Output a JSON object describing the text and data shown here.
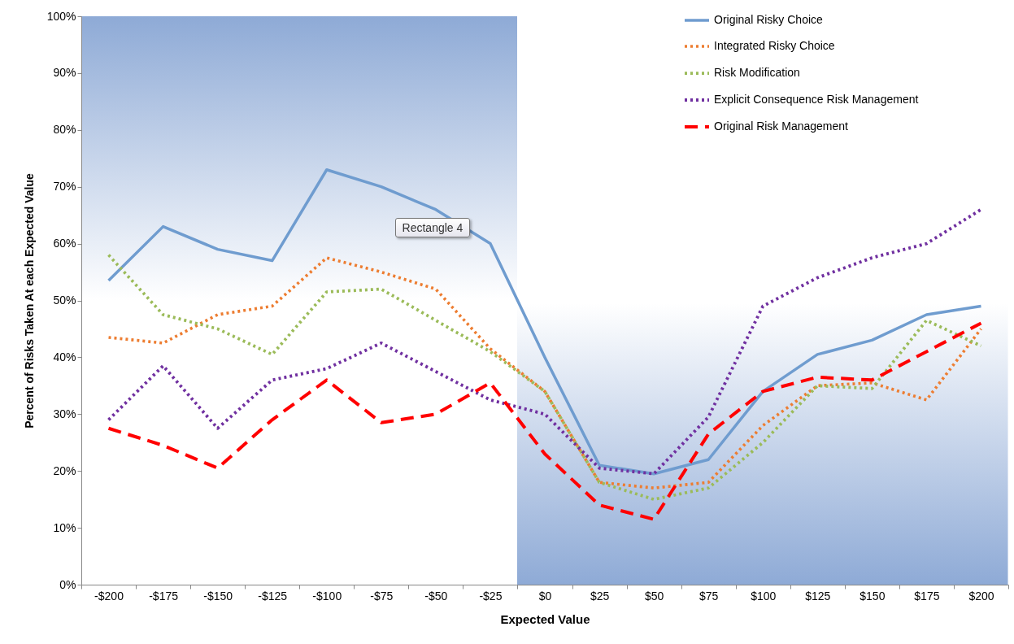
{
  "chart_data": {
    "type": "line",
    "xlabel": "Expected Value",
    "ylabel": "Percent of Risks Taken At each Expected Value",
    "categories": [
      "-$200",
      "-$175",
      "-$150",
      "-$125",
      "-$100",
      "-$75",
      "-$50",
      "-$25",
      "$0",
      "$25",
      "$50",
      "$75",
      "$100",
      "$125",
      "$150",
      "$175",
      "$200"
    ],
    "ylim": [
      0,
      100
    ],
    "yticks": [
      {
        "value": 0,
        "label": "0%"
      },
      {
        "value": 10,
        "label": "10%"
      },
      {
        "value": 20,
        "label": "20%"
      },
      {
        "value": 30,
        "label": "30%"
      },
      {
        "value": 40,
        "label": "40%"
      },
      {
        "value": 50,
        "label": "50%"
      },
      {
        "value": 60,
        "label": "60%"
      },
      {
        "value": 70,
        "label": "70%"
      },
      {
        "value": 80,
        "label": "80%"
      },
      {
        "value": 90,
        "label": "90%"
      },
      {
        "value": 100,
        "label": "100%"
      }
    ],
    "legend": "top right",
    "annotations": [
      "Rectangle 4"
    ],
    "series": [
      {
        "name": "Original Risky Choice",
        "color": "#6f9ccf",
        "line_style": "solid",
        "values": [
          53.5,
          63,
          59,
          57,
          73,
          70,
          66,
          60,
          40,
          21,
          19.5,
          22,
          34,
          40.5,
          43,
          47.5,
          49
        ]
      },
      {
        "name": "Integrated Risky Choice",
        "color": "#ed7d31",
        "line_style": "dotted",
        "values": [
          43.5,
          42.5,
          47.5,
          49,
          57.5,
          55,
          52,
          41.5,
          34,
          18,
          17,
          18,
          28,
          35,
          35.5,
          32.5,
          45
        ]
      },
      {
        "name": "Risk Modification",
        "color": "#9bbb59",
        "line_style": "dotted",
        "values": [
          58,
          47.5,
          45,
          40.5,
          51.5,
          52,
          46.5,
          41,
          34,
          18,
          15,
          17,
          25,
          35,
          34.5,
          46.5,
          42
        ]
      },
      {
        "name": "Explicit Consequence Risk Management",
        "color": "#7030a0",
        "line_style": "dotted",
        "values": [
          29,
          38.5,
          27.5,
          36,
          38,
          42.5,
          37.5,
          32.5,
          30,
          20.5,
          19.5,
          29.5,
          49,
          54,
          57.5,
          60,
          66
        ]
      },
      {
        "name": "Original Risk Management",
        "color": "#ff0000",
        "line_style": "dashed",
        "values": [
          27.5,
          24.5,
          20.5,
          29,
          36,
          28.5,
          30,
          35.5,
          23,
          14,
          11.5,
          26.5,
          34,
          36.5,
          36,
          41,
          46
        ]
      }
    ]
  }
}
